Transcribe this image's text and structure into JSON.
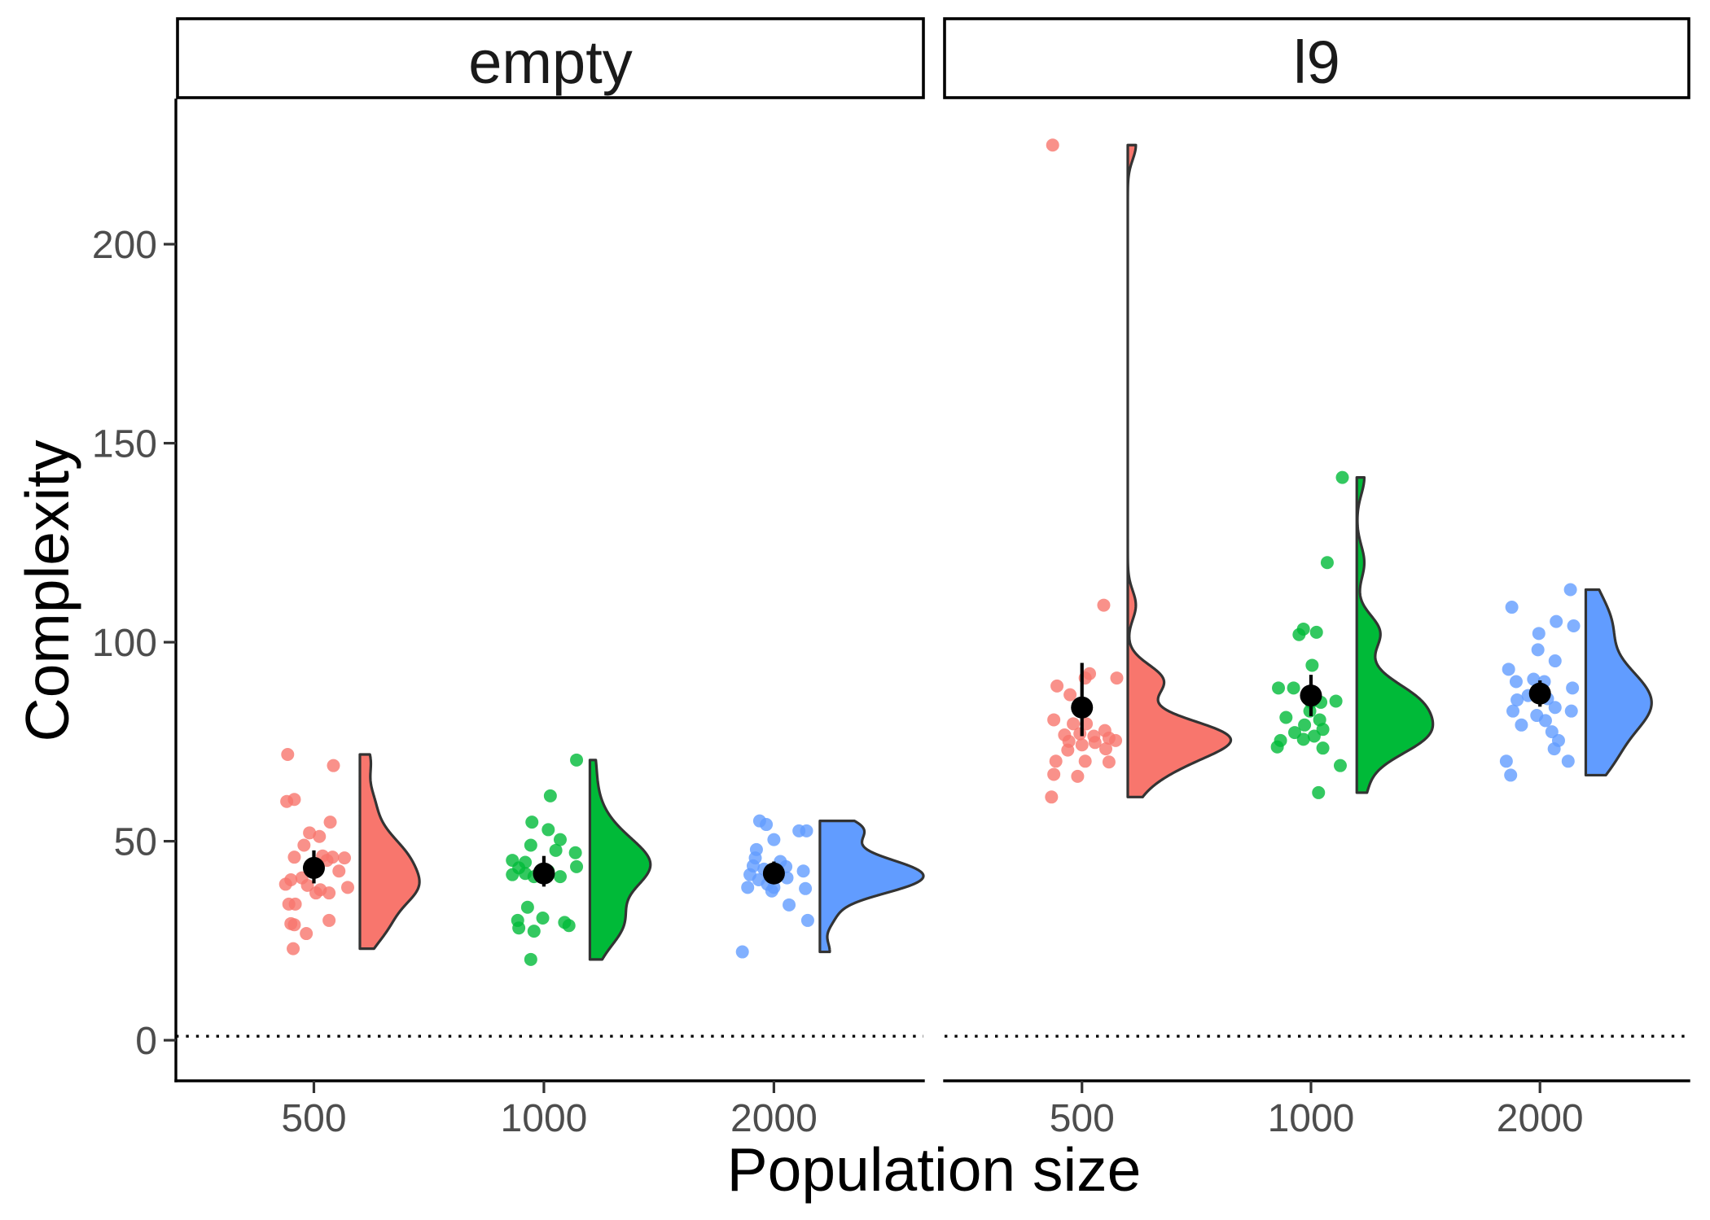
{
  "chart_data": {
    "type": "scatter",
    "xlabel": "Population size",
    "ylabel": "Complexity",
    "categories": [
      "500",
      "1000",
      "2000"
    ],
    "colors": {
      "500": "#F8766D",
      "1000": "#00BA38",
      "2000": "#619CFF",
      "summary": "#000000",
      "outline": "#333333"
    },
    "y_ticks": [
      0,
      50,
      100,
      150,
      200
    ],
    "ylim": [
      -10.2,
      236.2
    ],
    "reference_line": 1,
    "legend": "none",
    "grid": false,
    "facets": [
      {
        "label": "empty",
        "groups": [
          {
            "category": "500",
            "points": [
              71.8,
              69.0,
              60.0,
              60.5,
              54.8,
              52.1,
              51.2,
              49.0,
              46.0,
              46.3,
              46.0,
              45.8,
              45.2,
              42.5,
              40.3,
              40.8,
              39.2,
              38.9,
              37.8,
              37.0,
              38.4,
              37.0,
              34.2,
              34.2,
              30.1,
              29.3,
              29.0,
              26.8,
              23.0
            ],
            "mean": 43.3,
            "error_bar": [
              39.4,
              47.7
            ]
          },
          {
            "category": "1000",
            "points": [
              70.4,
              61.4,
              54.8,
              52.9,
              50.4,
              49.0,
              47.7,
              47.1,
              45.2,
              44.7,
              43.3,
              43.6,
              42.5,
              41.6,
              41.9,
              42.5,
              41.1,
              41.1,
              33.4,
              30.1,
              28.2,
              30.7,
              29.6,
              28.8,
              27.4,
              20.3
            ],
            "mean": 41.9,
            "error_bar": [
              38.6,
              46.3
            ]
          },
          {
            "category": "2000",
            "points": [
              55.1,
              54.2,
              52.6,
              52.6,
              50.4,
              47.9,
              45.8,
              44.9,
              43.8,
              43.6,
              43.0,
              42.5,
              41.6,
              41.6,
              40.8,
              40.3,
              39.2,
              38.4,
              38.4,
              38.1,
              37.5,
              34.0,
              30.1,
              22.2
            ],
            "mean": 41.9,
            "error_bar": [
              39.2,
              44.9
            ]
          }
        ]
      },
      {
        "label": "l9",
        "groups": [
          {
            "category": "500",
            "points": [
              224.9,
              109.3,
              92.1,
              91.0,
              91.0,
              89.0,
              86.8,
              80.5,
              79.5,
              79.5,
              77.8,
              76.7,
              77.0,
              76.4,
              75.9,
              75.1,
              74.2,
              74.8,
              75.3,
              72.9,
              73.2,
              70.1,
              70.1,
              69.9,
              66.8,
              66.3,
              61.1
            ],
            "mean": 83.6,
            "error_bar": [
              76.4,
              94.8
            ]
          },
          {
            "category": "1000",
            "points": [
              141.4,
              120.0,
              103.3,
              101.9,
              102.5,
              94.2,
              85.2,
              88.5,
              88.5,
              86.3,
              84.9,
              84.9,
              81.1,
              82.7,
              80.5,
              79.2,
              78.1,
              77.3,
              76.4,
              75.3,
              75.6,
              73.7,
              73.4,
              69.0,
              62.2
            ],
            "mean": 86.6,
            "error_bar": [
              81.4,
              91.8
            ]
          },
          {
            "category": "2000",
            "points": [
              113.2,
              108.8,
              105.2,
              104.1,
              102.2,
              98.1,
              95.3,
              93.2,
              90.1,
              90.7,
              90.1,
              88.5,
              86.6,
              85.5,
              85.8,
              83.6,
              82.7,
              82.7,
              81.6,
              80.3,
              79.2,
              77.5,
              75.3,
              73.2,
              70.1,
              70.1,
              66.6
            ],
            "mean": 87.1,
            "error_bar": [
              83.8,
              90.4
            ]
          }
        ]
      }
    ]
  }
}
